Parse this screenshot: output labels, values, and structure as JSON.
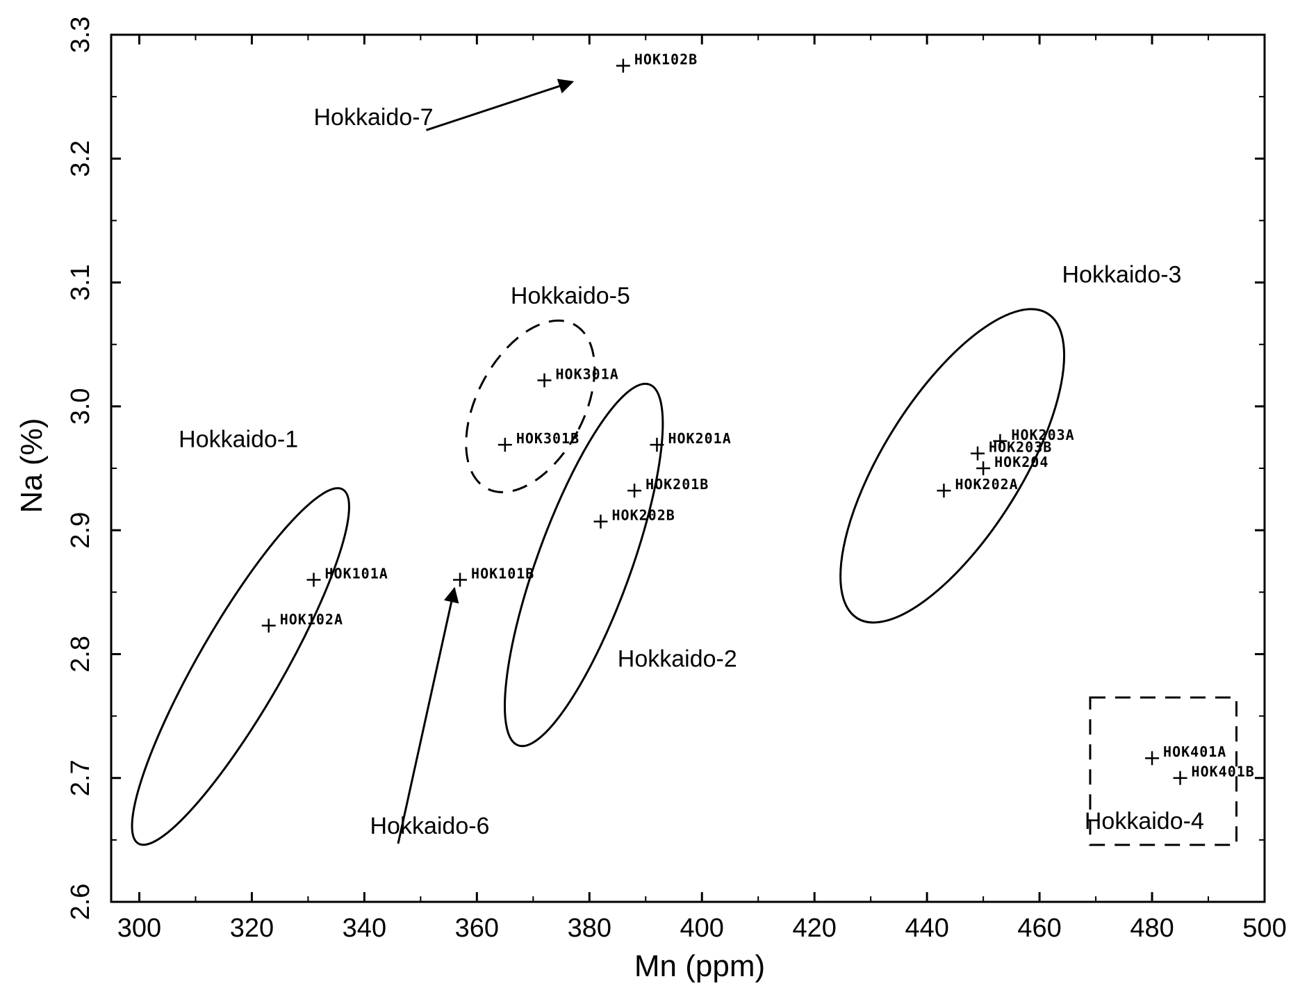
{
  "chart_data": {
    "type": "scatter",
    "xlabel": "Mn (ppm)",
    "ylabel": "Na (%)",
    "xlim": [
      295,
      500
    ],
    "ylim": [
      2.6,
      3.3
    ],
    "x_ticks": [
      300,
      320,
      340,
      360,
      380,
      400,
      420,
      440,
      460,
      480,
      500
    ],
    "y_ticks": [
      2.6,
      2.7,
      2.8,
      2.9,
      3.0,
      3.1,
      3.2,
      3.3
    ],
    "x_tick_labels": [
      "300",
      "320",
      "340",
      "360",
      "380",
      "400",
      "420",
      "440",
      "460",
      "480",
      "500"
    ],
    "y_tick_labels": [
      "2.6",
      "2.7",
      "2.8",
      "2.9",
      "3.0",
      "3.1",
      "3.2",
      "3.3"
    ],
    "grid": false,
    "marker": "+",
    "points": [
      {
        "label": "HOK101A",
        "x": 331,
        "y": 2.86
      },
      {
        "label": "HOK102A",
        "x": 323,
        "y": 2.823
      },
      {
        "label": "HOK101B",
        "x": 357,
        "y": 2.86
      },
      {
        "label": "HOK301B",
        "x": 365,
        "y": 2.969
      },
      {
        "label": "HOK301A",
        "x": 372,
        "y": 3.021
      },
      {
        "label": "HOK201A",
        "x": 392,
        "y": 2.969
      },
      {
        "label": "HOK201B",
        "x": 388,
        "y": 2.932
      },
      {
        "label": "HOK202B",
        "x": 382,
        "y": 2.907
      },
      {
        "label": "HOK102B",
        "x": 386,
        "y": 3.275
      },
      {
        "label": "HOK203A",
        "x": 453,
        "y": 2.972
      },
      {
        "label": "HOK203B",
        "x": 449,
        "y": 2.962
      },
      {
        "label": "HOK204",
        "x": 450,
        "y": 2.95
      },
      {
        "label": "HOK202A",
        "x": 443,
        "y": 2.932
      },
      {
        "label": "HOK401A",
        "x": 480,
        "y": 2.716
      },
      {
        "label": "HOK401B",
        "x": 485,
        "y": 2.7
      }
    ],
    "groups": [
      {
        "name": "Hokkaido-1",
        "label_x": 307,
        "label_y": 2.967,
        "shape": "ellipse",
        "style": "solid",
        "cx": 318,
        "cy": 2.79,
        "rx": 7.5,
        "ry": 0.165,
        "rotate": 30
      },
      {
        "name": "Hokkaido-2",
        "label_x": 385,
        "label_y": 2.79,
        "shape": "ellipse",
        "style": "solid",
        "cx": 379,
        "cy": 2.872,
        "rx": 8.3,
        "ry": 0.155,
        "rotate": 20
      },
      {
        "name": "Hokkaido-3",
        "label_x": 464,
        "label_y": 3.1,
        "shape": "ellipse",
        "style": "solid",
        "cx": 444.5,
        "cy": 2.952,
        "rx": 12.3,
        "ry": 0.145,
        "rotate": 32
      },
      {
        "name": "Hokkaido-4",
        "label_x": 468,
        "label_y": 2.659,
        "shape": "rect",
        "style": "dashed",
        "x0": 469,
        "x1": 495,
        "y0": 2.646,
        "y1": 2.765
      },
      {
        "name": "Hokkaido-5",
        "label_x": 366,
        "label_y": 3.083,
        "shape": "ellipse",
        "style": "dashed",
        "cx": 369.5,
        "cy": 3.0,
        "rx": 9.5,
        "ry": 0.075,
        "rotate": 28
      },
      {
        "name": "Hokkaido-6",
        "label_x": 341,
        "label_y": 2.655,
        "shape": "arrow",
        "style": "solid",
        "from_x": 346,
        "from_y": 2.647,
        "to_x": 356,
        "to_y": 2.853
      },
      {
        "name": "Hokkaido-7",
        "label_x": 331,
        "label_y": 3.227,
        "shape": "arrow",
        "style": "solid",
        "from_x": 351,
        "from_y": 3.223,
        "to_x": 377,
        "to_y": 3.262
      }
    ]
  }
}
